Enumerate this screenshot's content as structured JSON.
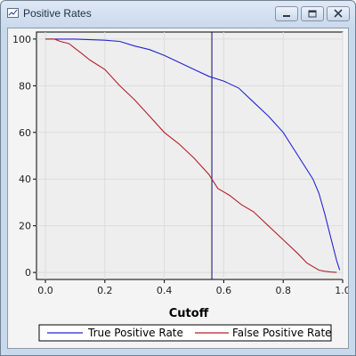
{
  "window": {
    "title": "Positive Rates",
    "icons": {
      "app": "chart-icon",
      "minimize": "minimize-icon",
      "maximize": "maximize-icon",
      "close": "close-icon"
    }
  },
  "chart_data": {
    "type": "line",
    "title": "",
    "xlabel": "Cutoff",
    "ylabel": "",
    "xlim": [
      -0.03,
      1.0
    ],
    "ylim": [
      -3,
      103
    ],
    "xticks": [
      0.0,
      0.2,
      0.4,
      0.6,
      0.8,
      1.0
    ],
    "xtick_labels": [
      "0.0",
      "0.2",
      "0.4",
      "0.6",
      "0.8",
      "1.0"
    ],
    "yticks": [
      0,
      20,
      40,
      60,
      80,
      100
    ],
    "ytick_labels": [
      "0",
      "20",
      "40",
      "60",
      "80",
      "100"
    ],
    "grid": true,
    "legend_position": "bottom",
    "cutoff_line": {
      "x": 0.56,
      "color": "#0a0a78"
    },
    "series": [
      {
        "name": "True Positive Rate",
        "color": "#2323d2",
        "x": [
          0.0,
          0.1,
          0.2,
          0.25,
          0.3,
          0.35,
          0.4,
          0.45,
          0.5,
          0.55,
          0.6,
          0.65,
          0.7,
          0.75,
          0.8,
          0.85,
          0.9,
          0.92,
          0.94,
          0.96,
          0.98,
          0.99
        ],
        "y": [
          100,
          100,
          99.5,
          99,
          97,
          95.5,
          93,
          90,
          87,
          84,
          82,
          79,
          73,
          67,
          60,
          50,
          40,
          34,
          25,
          15,
          5,
          1
        ]
      },
      {
        "name": "False Positive Rate",
        "color": "#b4202a",
        "x": [
          0.0,
          0.03,
          0.05,
          0.08,
          0.1,
          0.12,
          0.15,
          0.2,
          0.25,
          0.3,
          0.35,
          0.4,
          0.45,
          0.5,
          0.55,
          0.58,
          0.62,
          0.66,
          0.7,
          0.75,
          0.8,
          0.85,
          0.88,
          0.92,
          0.94,
          0.96,
          0.98
        ],
        "y": [
          100,
          100,
          99,
          98,
          96,
          94,
          91,
          87,
          80,
          74,
          67,
          60,
          55,
          49,
          42,
          36,
          33,
          29,
          26,
          20,
          14,
          8,
          4,
          1,
          0.5,
          0.2,
          0
        ]
      }
    ]
  }
}
